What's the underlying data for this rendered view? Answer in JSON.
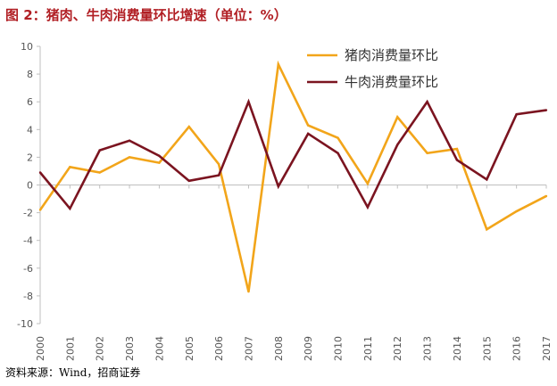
{
  "figure": {
    "title": "图 2：猪肉、牛肉消费量环比增速（单位：%）",
    "source": "资料来源：Wind，招商证券"
  },
  "chart_data": {
    "type": "line",
    "title": "图 2：猪肉、牛肉消费量环比增速（单位：%）",
    "xlabel": "",
    "ylabel": "",
    "categories": [
      "2000",
      "2001",
      "2002",
      "2003",
      "2004",
      "2005",
      "2006",
      "2007",
      "2008",
      "2009",
      "2010",
      "2011",
      "2012",
      "2013",
      "2014",
      "2015",
      "2016",
      "2017"
    ],
    "series": [
      {
        "name": "猪肉消费量环比",
        "color": "#f2a51a",
        "values": [
          -1.8,
          1.3,
          0.9,
          2.0,
          1.6,
          4.2,
          1.5,
          -7.7,
          8.7,
          4.3,
          3.4,
          0.1,
          4.9,
          2.3,
          2.6,
          -3.2,
          -1.9,
          -0.8
        ]
      },
      {
        "name": "牛肉消费量环比",
        "color": "#7b1420",
        "values": [
          0.9,
          -1.7,
          2.5,
          3.2,
          2.1,
          0.3,
          0.7,
          6.0,
          -0.1,
          3.7,
          2.3,
          -1.6,
          2.9,
          6.0,
          1.8,
          0.4,
          5.1,
          5.4
        ]
      }
    ],
    "ylim": [
      -10,
      10
    ],
    "yticks": [
      -10,
      -8,
      -6,
      -4,
      -2,
      0,
      2,
      4,
      6,
      8,
      10
    ],
    "grid": false,
    "legend": "top-right"
  }
}
